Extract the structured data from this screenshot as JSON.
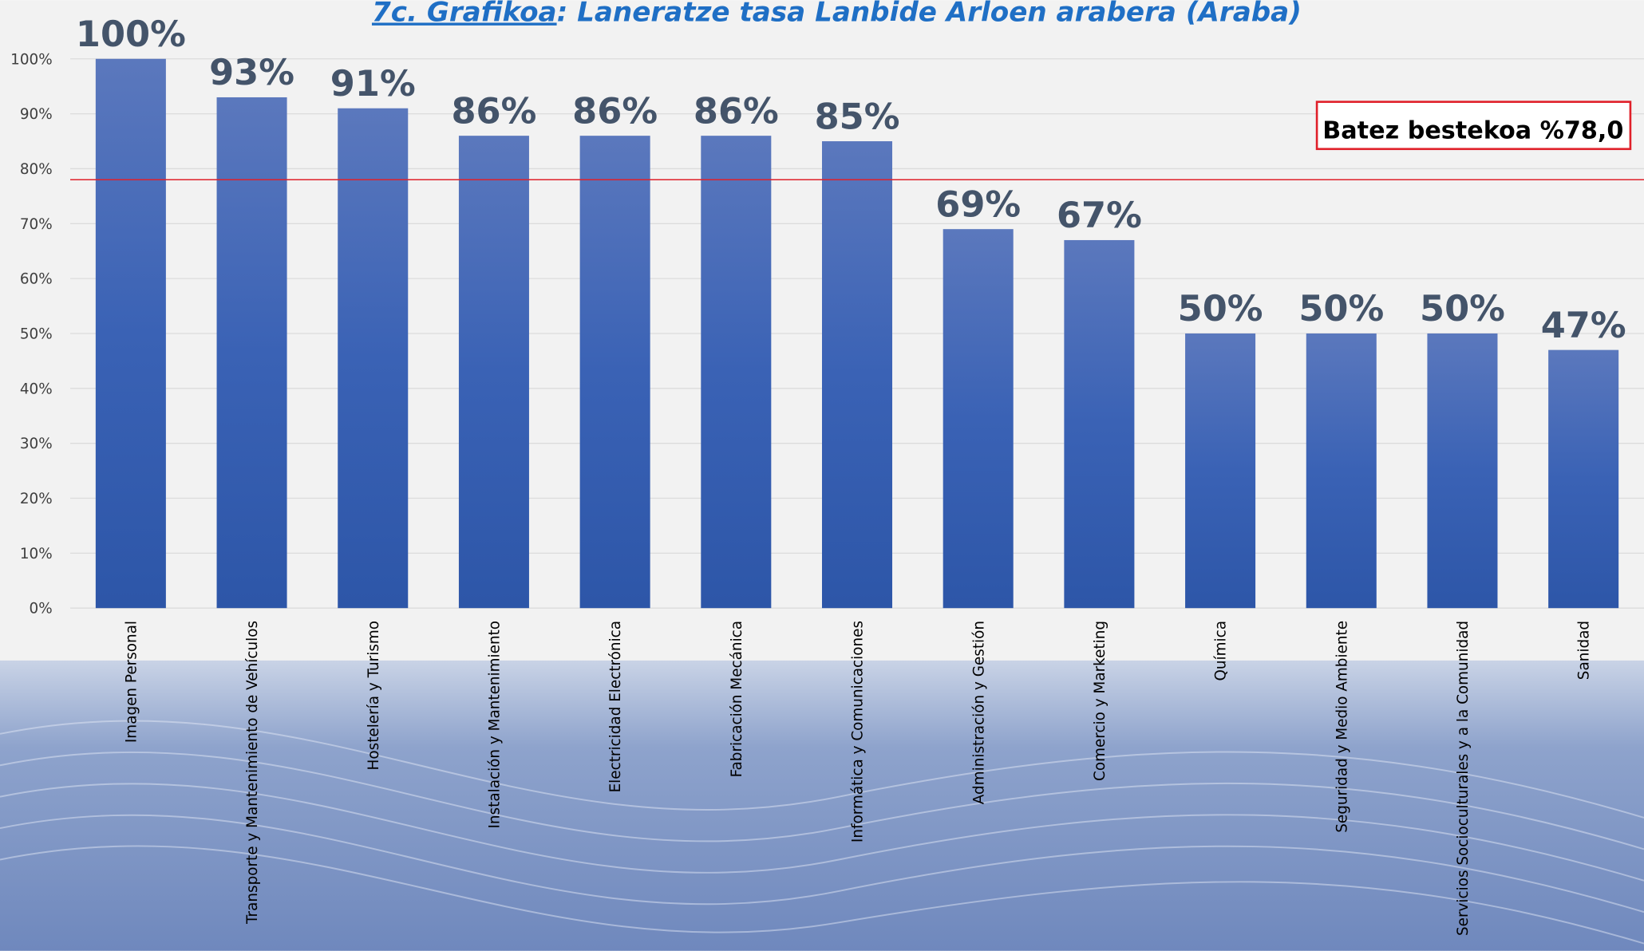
{
  "chart_data": {
    "type": "bar",
    "title": [
      "7c. Grafikoa",
      ": Laneratze tasa Lanbide Arloen arabera (Araba)"
    ],
    "categories": [
      "Imagen Personal",
      "Transporte y Mantenimiento de Vehículos",
      "Hostelería y Turismo",
      "Instalación y Mantenimiento",
      "Electricidad Electrónica",
      "Fabricación Mecánica",
      "Informática y Comunicaciones",
      "Administración y Gestión",
      "Comercio y Marketing",
      "Química",
      "Seguridad y Medio Ambiente",
      "Servicios Socioculturales y a la Comunidad",
      "Sanidad"
    ],
    "values": [
      100,
      93,
      91,
      86,
      86,
      86,
      85,
      69,
      67,
      50,
      50,
      50,
      47
    ],
    "value_labels": [
      "100%",
      "93%",
      "91%",
      "86%",
      "86%",
      "86%",
      "85%",
      "69%",
      "67%",
      "50%",
      "50%",
      "50%",
      "47%"
    ],
    "color": "#3a62b5",
    "ylim": [
      0,
      100
    ],
    "yticks": [
      {
        "value": 0,
        "label": "0%"
      },
      {
        "value": 10,
        "label": "10%"
      },
      {
        "value": 20,
        "label": "20%"
      },
      {
        "value": 30,
        "label": "30%"
      },
      {
        "value": 40,
        "label": "40%"
      },
      {
        "value": 50,
        "label": "50%"
      },
      {
        "value": 60,
        "label": "60%"
      },
      {
        "value": 70,
        "label": "70%"
      },
      {
        "value": 80,
        "label": "80%"
      },
      {
        "value": 90,
        "label": "90%"
      },
      {
        "value": 100,
        "label": "100%"
      }
    ],
    "grid": true,
    "reference_line": {
      "value": 78,
      "label": "Batez bestekoa %78,0",
      "color": "#e0202a"
    }
  }
}
